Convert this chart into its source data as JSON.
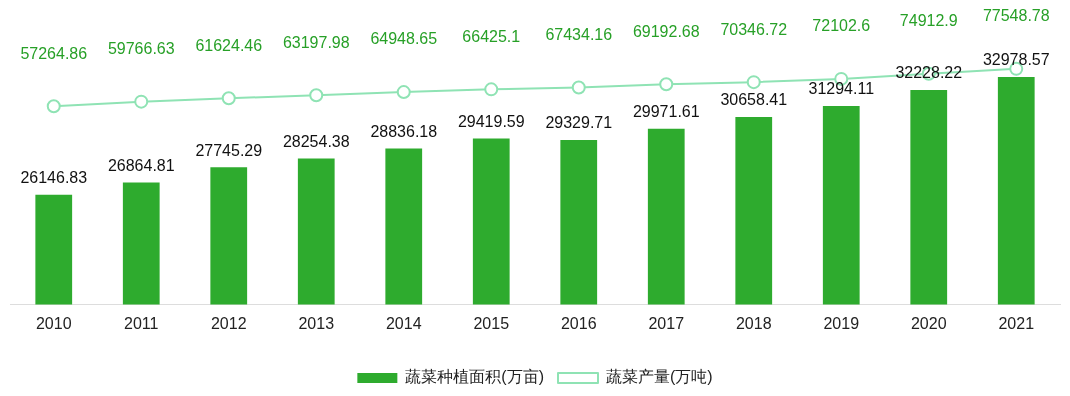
{
  "chart_data": {
    "type": "bar",
    "categories": [
      "2010",
      "2011",
      "2012",
      "2013",
      "2014",
      "2015",
      "2016",
      "2017",
      "2018",
      "2019",
      "2020",
      "2021"
    ],
    "series": [
      {
        "name": "蔬菜种植面积(万亩)",
        "color": "#2eab2e",
        "values": [
          26146.83,
          26864.81,
          27745.29,
          28254.38,
          28836.18,
          29419.59,
          29329.71,
          29971.61,
          30658.41,
          31294.11,
          32228.22,
          32978.57
        ]
      },
      {
        "name": "蔬菜产量(万吨)",
        "type": "line",
        "axis": "y2",
        "color": "#8fe3b4",
        "values": [
          57264.86,
          59766.63,
          61624.46,
          63197.98,
          64948.65,
          66425.1,
          67434.16,
          69192.68,
          70346.72,
          72102.6,
          74912.9,
          77548.78
        ]
      }
    ],
    "tick_labels": "x",
    "grid": false,
    "legend": "bottom",
    "marker": "circle",
    "data_labels": true
  }
}
